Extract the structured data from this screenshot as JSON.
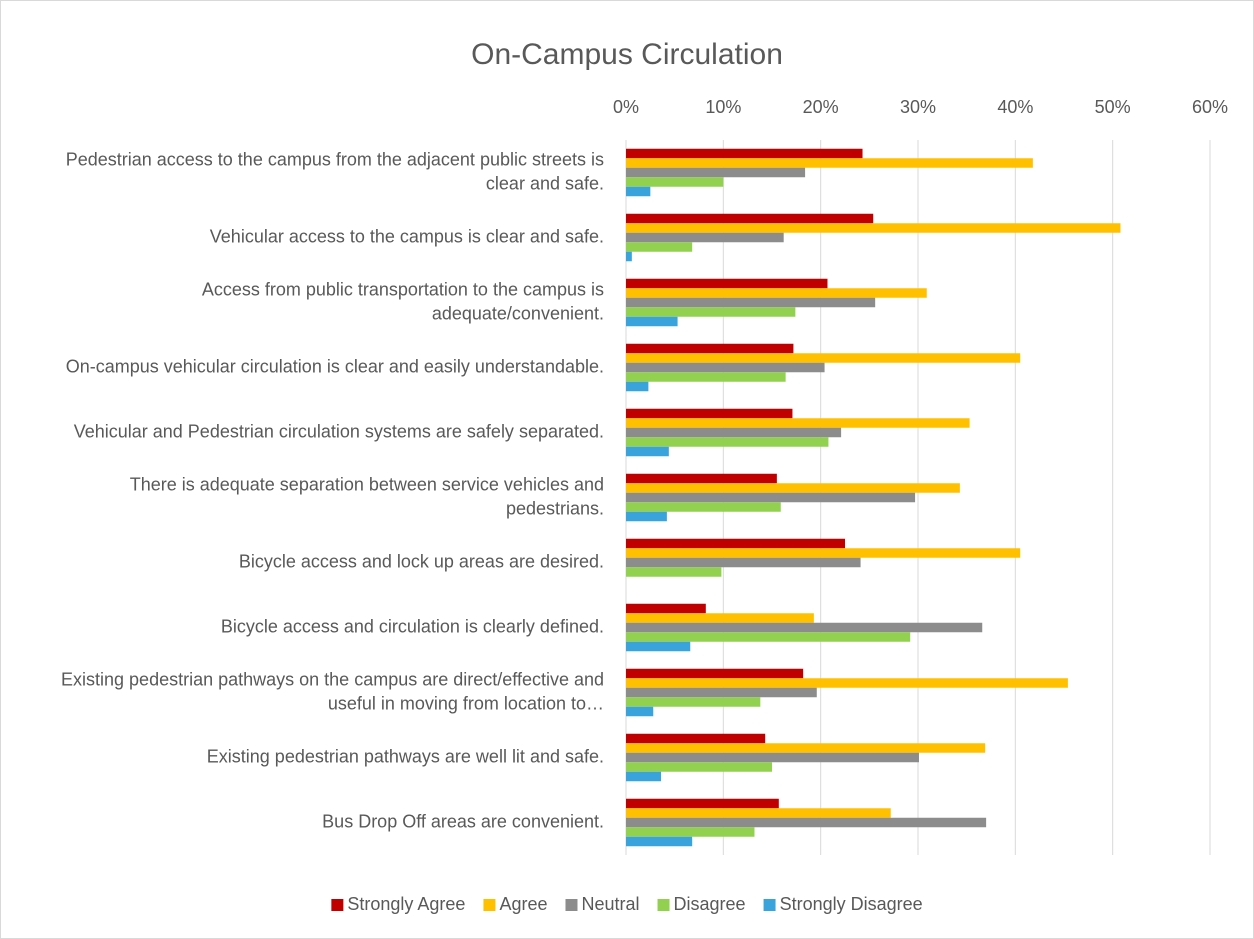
{
  "chart_data": {
    "type": "bar",
    "orientation": "horizontal",
    "title": "On-Campus Circulation",
    "categories": [
      "Pedestrian access to the campus from the adjacent public streets is clear and safe.",
      "Vehicular access to the campus is clear and safe.",
      "Access from public transportation to the campus is adequate/convenient.",
      "On-campus vehicular circulation is clear and easily understandable.",
      "Vehicular and Pedestrian circulation systems are safely separated.",
      "There is adequate separation between service vehicles and pedestrians.",
      "Bicycle access and lock up areas are desired.",
      "Bicycle access and circulation is clearly defined.",
      "Existing pedestrian pathways on the campus are direct/effective and useful in moving from location to…",
      "Existing pedestrian pathways are well lit and safe.",
      "Bus Drop Off areas are convenient."
    ],
    "series": [
      {
        "name": "Strongly Agree",
        "color": "#c00000",
        "values": [
          24.3,
          25.4,
          20.7,
          17.2,
          17.1,
          15.5,
          22.5,
          8.2,
          18.2,
          14.3,
          15.7
        ]
      },
      {
        "name": "Agree",
        "color": "#ffc000",
        "values": [
          41.8,
          50.8,
          30.9,
          40.5,
          35.3,
          34.3,
          40.5,
          19.3,
          45.4,
          36.9,
          27.2
        ]
      },
      {
        "name": "Neutral",
        "color": "#8c8c8c",
        "values": [
          18.4,
          16.2,
          25.6,
          20.4,
          22.1,
          29.7,
          24.1,
          36.6,
          19.6,
          30.1,
          37.0
        ]
      },
      {
        "name": "Disagree",
        "color": "#92d050",
        "values": [
          10.0,
          6.8,
          17.4,
          16.4,
          20.8,
          15.9,
          9.8,
          29.2,
          13.8,
          15.0,
          13.2
        ]
      },
      {
        "name": "Strongly Disagree",
        "color": "#3aa3dc",
        "values": [
          2.5,
          0.6,
          5.3,
          2.3,
          4.4,
          4.2,
          0,
          6.6,
          2.8,
          3.6,
          6.8
        ]
      }
    ],
    "xlim": [
      0,
      60
    ],
    "xticks": [
      {
        "value": 0,
        "label": "0%"
      },
      {
        "value": 10,
        "label": "10%"
      },
      {
        "value": 20,
        "label": "20%"
      },
      {
        "value": 30,
        "label": "30%"
      },
      {
        "value": 40,
        "label": "40%"
      },
      {
        "value": 50,
        "label": "50%"
      },
      {
        "value": 60,
        "label": "60%"
      }
    ],
    "grid": true,
    "legend": "bottom"
  }
}
